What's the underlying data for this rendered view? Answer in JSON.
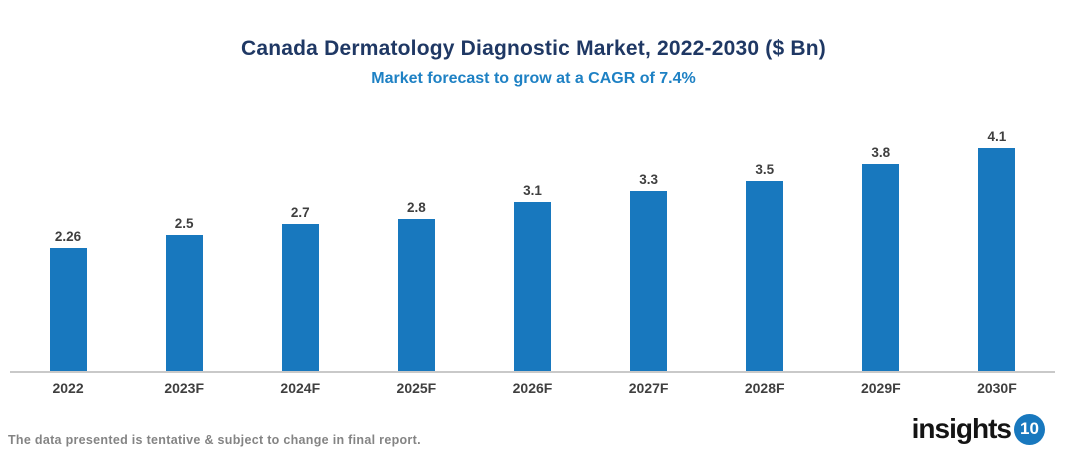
{
  "header": {
    "title": "Canada Dermatology Diagnostic Market, 2022-2030 ($ Bn)",
    "subtitle": "Market forecast to grow at a CAGR of 7.4%"
  },
  "chart_data": {
    "type": "bar",
    "title": "Canada Dermatology Diagnostic Market, 2022-2030 ($ Bn)",
    "subtitle": "Market forecast to grow at a CAGR of 7.4%",
    "categories": [
      "2022",
      "2023F",
      "2024F",
      "2025F",
      "2026F",
      "2027F",
      "2028F",
      "2029F",
      "2030F"
    ],
    "values": [
      2.26,
      2.5,
      2.7,
      2.8,
      3.1,
      3.3,
      3.5,
      3.8,
      4.1
    ],
    "value_labels": [
      "2.26",
      "2.5",
      "2.7",
      "2.8",
      "3.1",
      "3.3",
      "3.5",
      "3.8",
      "4.1"
    ],
    "xlabel": "",
    "ylabel": "",
    "ylim": [
      0,
      5
    ],
    "grid": false,
    "legend": false,
    "bar_color": "#1878BE"
  },
  "colors": {
    "bar": "#1878BE",
    "title": "#1F3864",
    "subtitle": "#1E81C4",
    "axis_line": "#C9C9C9",
    "data_label": "#3F3F3F",
    "footer_text": "#848484",
    "logo_badge": "#1878BE"
  },
  "footer": {
    "disclaimer": "The data presented is tentative & subject to change in final report."
  },
  "logo": {
    "text": "insights",
    "badge": "10"
  }
}
